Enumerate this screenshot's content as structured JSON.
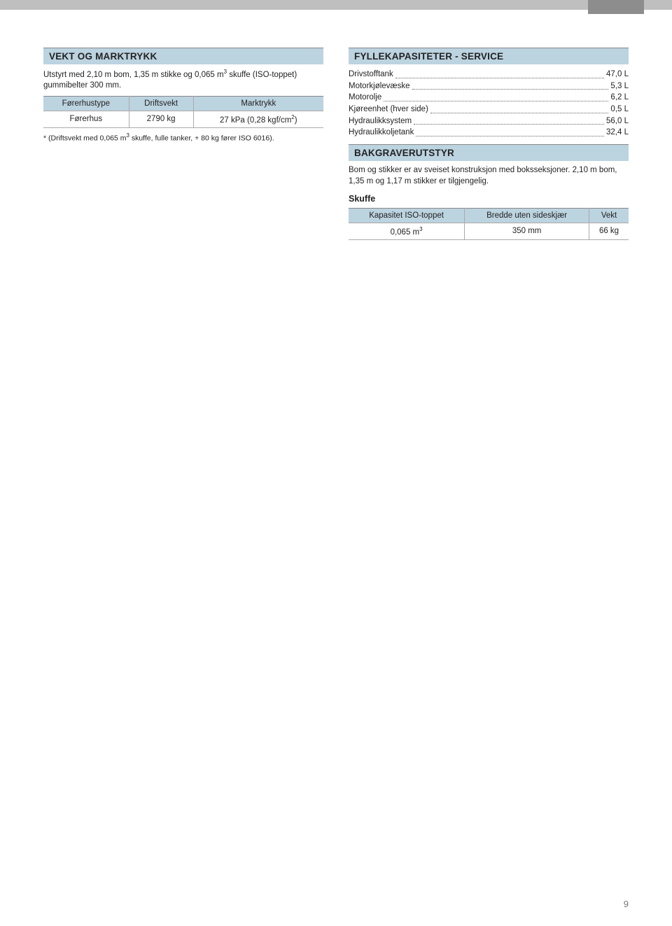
{
  "page_number": "9",
  "left": {
    "vekt_heading": "VEKT OG MARKTRYKK",
    "vekt_intro_a": "Utstyrt med 2,10 m bom, 1,35 m stikke og 0,065 m",
    "vekt_intro_b": " skuffe (ISO-toppet) gummibelter 300 mm.",
    "table": {
      "h1": "Førerhustype",
      "h2": "Driftsvekt",
      "h3": "Marktrykk",
      "r1c1": "Førerhus",
      "r1c2": "2790 kg",
      "r1c3_a": "27 kPa (0,28 kgf/cm",
      "r1c3_b": ")"
    },
    "footnote_a": "* (Driftsvekt med 0,065 m",
    "footnote_b": " skuffe, fulle tanker, + 80 kg fører ISO 6016)."
  },
  "right": {
    "fyll_heading": "FYLLEKAPASITETER - SERVICE",
    "caps": [
      {
        "label": "Drivstofftank",
        "value": "47,0 L"
      },
      {
        "label": "Motorkjølevæske",
        "value": "5,3 L"
      },
      {
        "label": "Motorolje",
        "value": "6,2 L"
      },
      {
        "label": "Kjøreenhet (hver side)",
        "value": "0,5 L"
      },
      {
        "label": "Hydraulikksystem",
        "value": "56,0 L"
      },
      {
        "label": "Hydraulikkoljetank",
        "value": "32,4 L"
      }
    ],
    "bak_heading": "BAKGRAVERUTSTYR",
    "bak_text": "Bom og stikker er av sveiset konstruksjon med boksseksjoner. 2,10 m bom, 1,35 m og 1,17 m stikker er tilgjengelig.",
    "skuffe_label": "Skuffe",
    "skuffe_table": {
      "h1": "Kapasitet ISO-toppet",
      "h2": "Bredde uten sideskjær",
      "h3": "Vekt",
      "r1c1_a": "0,065 m",
      "r1c2": "350 mm",
      "r1c3": "66 kg"
    }
  }
}
